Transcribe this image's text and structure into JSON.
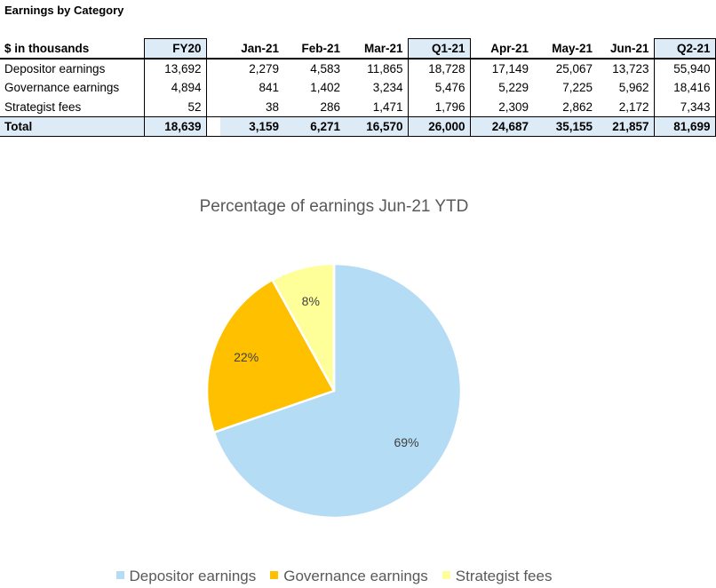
{
  "sheet_title": "Earnings by Category",
  "table": {
    "header": [
      "$ in thousands",
      "FY20",
      "Jan-21",
      "Feb-21",
      "Mar-21",
      "Q1-21",
      "Apr-21",
      "May-21",
      "Jun-21",
      "Q2-21"
    ],
    "rows": [
      {
        "label": "Depositor earnings",
        "values": [
          "13,692",
          "2,279",
          "4,583",
          "11,865",
          "18,728",
          "17,149",
          "25,067",
          "13,723",
          "55,940"
        ]
      },
      {
        "label": "Governance earnings",
        "values": [
          "4,894",
          "841",
          "1,402",
          "3,234",
          "5,476",
          "5,229",
          "7,225",
          "5,962",
          "18,416"
        ]
      },
      {
        "label": "Strategist fees",
        "values": [
          "52",
          "38",
          "286",
          "1,471",
          "1,796",
          "2,309",
          "2,862",
          "2,172",
          "7,343"
        ]
      }
    ],
    "total": {
      "label": "Total",
      "values": [
        "18,639",
        "3,159",
        "6,271",
        "16,570",
        "26,000",
        "24,687",
        "35,155",
        "21,857",
        "81,699"
      ]
    }
  },
  "chart_data": {
    "type": "pie",
    "title": "Percentage of earnings Jun-21 YTD",
    "labels": [
      "Depositor earnings",
      "Governance earnings",
      "Strategist fees"
    ],
    "values": [
      69,
      22,
      8
    ],
    "data_labels": [
      "69%",
      "22%",
      "8%"
    ],
    "colors": [
      "#b4dcf5",
      "#ffc000",
      "#ffff99"
    ],
    "legend": "bottom",
    "start": "top",
    "direction": "clockwise"
  }
}
